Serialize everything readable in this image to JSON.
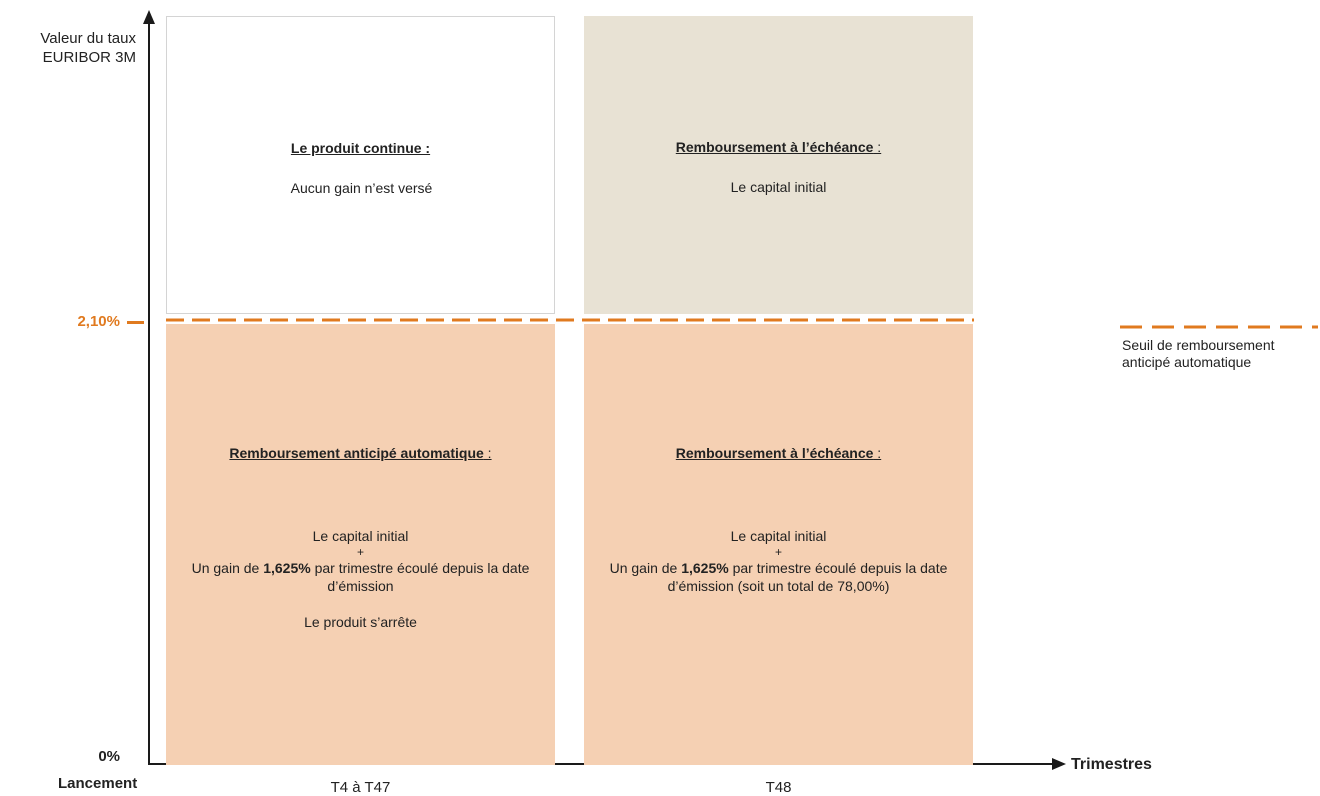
{
  "axes": {
    "y_label_line1": "Valeur du taux",
    "y_label_line2": "EURIBOR 3M",
    "x_title": "Trimestres",
    "origin_label": "Lancement",
    "tick_threshold": "2,10%",
    "tick_zero": "0%"
  },
  "columns": [
    {
      "label": "T4 à T47"
    },
    {
      "label": "T48"
    }
  ],
  "boxes": {
    "top_left": {
      "title": "Le produit continue :",
      "body": "Aucun gain n’est versé"
    },
    "top_right": {
      "title": "Remboursement à l’échéance",
      "colon": " :",
      "body": "Le capital initial"
    },
    "bottom_left": {
      "title": "Remboursement anticipé automatique",
      "colon": " :",
      "line1": "Le capital initial",
      "plus": "+",
      "gain_prefix": "Un gain de ",
      "gain_value": "1,625%",
      "gain_suffix": " par trimestre écoulé depuis la date d’émission",
      "stop": "Le produit s’arrête"
    },
    "bottom_right": {
      "title": "Remboursement à l’échéance",
      "colon": " :",
      "line1": "Le capital initial",
      "plus": "+",
      "gain_prefix": "Un gain de ",
      "gain_value": "1,625%",
      "gain_suffix": " par trimestre écoulé depuis la date d’émission (soit un total de 78,00%)"
    }
  },
  "legend": {
    "label": "Seuil de remboursement anticipé automatique"
  },
  "colors": {
    "threshold": "#e07a1f",
    "orange_fill": "#f5d0b3",
    "beige_fill": "#e8e2d4"
  }
}
